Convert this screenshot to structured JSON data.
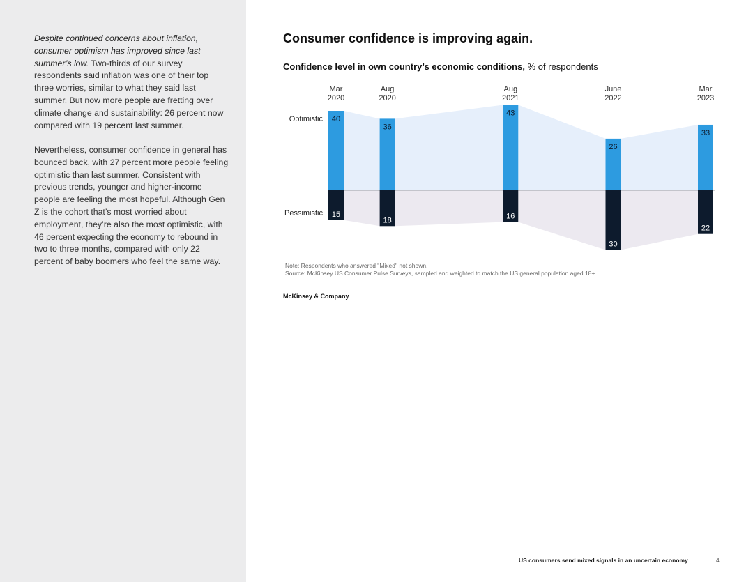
{
  "sidebar": {
    "p1_intro": "Despite continued concerns about inflation, consumer optimism has improved since last summer’s low.",
    "p1_rest": " Two-thirds of our survey respondents said inflation was one of their top three worries, similar to what they said last summer. But now more people are fretting over climate change and sustainability: 26 percent now compared with 19 percent last summer.",
    "p2": "Nevertheless, consumer confidence in general has bounced back, with 27 percent more people feeling optimistic than last summer. Consistent with previous trends, younger and higher-income people are feeling the most hopeful. Although Gen Z is the cohort that’s most worried about employment, they’re also the most optimistic, with 46 percent expecting the economy to rebound in two to three months, compared with only 22 percent of baby boomers who feel the same way."
  },
  "main": {
    "title": "Consumer confidence is improving again.",
    "subtitle_bold": "Confidence level in own country’s economic conditions,",
    "subtitle_rest": " % of respondents",
    "note": "Note: Respondents who answered \"Mixed\" not shown.",
    "source": "Source: McKinsey US Consumer Pulse Surveys, sampled and weighted to match the US general population aged 18+",
    "brand": "McKinsey & Company"
  },
  "footer": {
    "title": "US consumers send mixed signals in an uncertain economy",
    "page": "4"
  },
  "colors": {
    "optimistic": "#2d9be0",
    "pessimistic": "#0d1b2d",
    "optimistic_band": "#e6effb",
    "pessimistic_band": "#ece9f0",
    "baseline": "#9aa0a6"
  },
  "chart_data": {
    "type": "bar",
    "title": "Confidence level in own country’s economic conditions, % of respondents",
    "categories": [
      {
        "month": "Mar",
        "year": "2020"
      },
      {
        "month": "Aug",
        "year": "2020"
      },
      {
        "month": "Aug",
        "year": "2021"
      },
      {
        "month": "June",
        "year": "2022"
      },
      {
        "month": "Mar",
        "year": "2023"
      }
    ],
    "x_dates": [
      "2020-03",
      "2020-08",
      "2021-08",
      "2022-06",
      "2023-03"
    ],
    "series": [
      {
        "name": "Optimistic",
        "values": [
          40,
          36,
          43,
          26,
          33
        ]
      },
      {
        "name": "Pessimistic",
        "values": [
          15,
          18,
          16,
          30,
          22
        ]
      }
    ],
    "ylim": [
      -30,
      43
    ],
    "grid": false
  }
}
